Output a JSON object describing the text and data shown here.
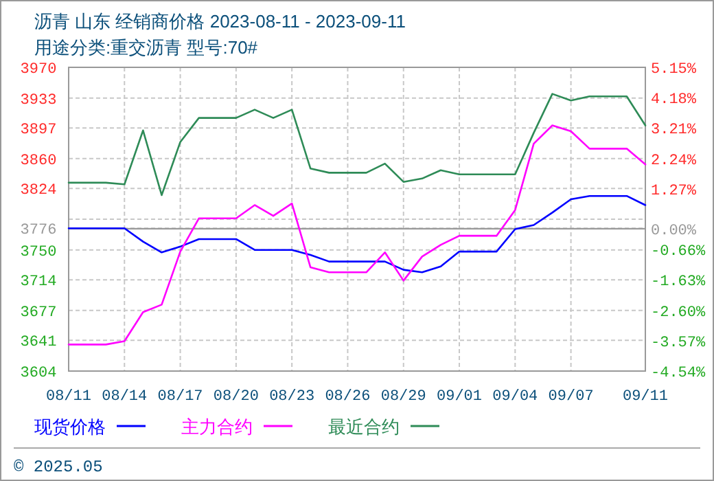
{
  "chart_data": {
    "type": "line",
    "title": "沥青 山东 经销商价格 2023-08-11 - 2023-09-11",
    "subtitle": "用途分类:重交沥青 型号:70#",
    "x": [
      "2023-08-11",
      "2023-08-12",
      "2023-08-13",
      "2023-08-14",
      "2023-08-15",
      "2023-08-16",
      "2023-08-17",
      "2023-08-18",
      "2023-08-19",
      "2023-08-20",
      "2023-08-21",
      "2023-08-22",
      "2023-08-23",
      "2023-08-24",
      "2023-08-25",
      "2023-08-26",
      "2023-08-27",
      "2023-08-28",
      "2023-08-29",
      "2023-08-30",
      "2023-08-31",
      "2023-09-01",
      "2023-09-02",
      "2023-09-03",
      "2023-09-04",
      "2023-09-05",
      "2023-09-06",
      "2023-09-07",
      "2023-09-08",
      "2023-09-09",
      "2023-09-10",
      "2023-09-11"
    ],
    "series": [
      {
        "name": "现货价格",
        "color": "#0000ff",
        "values": [
          3776,
          3776,
          3776,
          3776,
          3760,
          3747,
          3754,
          3763,
          3763,
          3763,
          3750,
          3750,
          3750,
          3744,
          3736,
          3736,
          3736,
          3736,
          3726,
          3723,
          3730,
          3748,
          3748,
          3748,
          3775,
          3780,
          3795,
          3811,
          3815,
          3815,
          3815,
          3804
        ]
      },
      {
        "name": "主力合约",
        "color": "#ff00ff",
        "values": [
          3636,
          3636,
          3636,
          3640,
          3675,
          3684,
          3748,
          3788,
          3788,
          3788,
          3804,
          3791,
          3806,
          3729,
          3723,
          3723,
          3723,
          3747,
          3713,
          3742,
          3756,
          3767,
          3767,
          3767,
          3798,
          3878,
          3900,
          3893,
          3872,
          3872,
          3872,
          3853
        ]
      },
      {
        "name": "最近合约",
        "color": "#2e8b57",
        "values": [
          3831,
          3831,
          3831,
          3829,
          3894,
          3816,
          3880,
          3909,
          3909,
          3909,
          3919,
          3909,
          3919,
          3848,
          3843,
          3843,
          3843,
          3854,
          3832,
          3836,
          3846,
          3841,
          3841,
          3841,
          3841,
          3891,
          3938,
          3930,
          3935,
          3935,
          3935,
          3900
        ]
      }
    ],
    "xlim": [
      "2023-08-11",
      "2023-09-11"
    ],
    "xticks": [
      {
        "value": "2023-08-11",
        "label": "08/11"
      },
      {
        "value": "2023-08-14",
        "label": "08/14"
      },
      {
        "value": "2023-08-17",
        "label": "08/17"
      },
      {
        "value": "2023-08-20",
        "label": "08/20"
      },
      {
        "value": "2023-08-23",
        "label": "08/23"
      },
      {
        "value": "2023-08-26",
        "label": "08/26"
      },
      {
        "value": "2023-08-29",
        "label": "08/29"
      },
      {
        "value": "2023-09-01",
        "label": "09/01"
      },
      {
        "value": "2023-09-04",
        "label": "09/04"
      },
      {
        "value": "2023-09-07",
        "label": "09/07"
      },
      {
        "value": "2023-09-11",
        "label": "09/11"
      }
    ],
    "ylim": [
      3604,
      3970
    ],
    "yticks": [
      3970,
      3933,
      3897,
      3860,
      3824,
      {
        "value": 3787,
        "label": null
      },
      3776,
      3750,
      3714,
      3677,
      3641,
      3604
    ],
    "y2lim": [
      -4.54,
      5.15
    ],
    "y2ticks": [
      {
        "value": 5.15,
        "label": "5.15%"
      },
      {
        "value": 4.18,
        "label": "4.18%"
      },
      {
        "value": 3.21,
        "label": "3.21%"
      },
      {
        "value": 2.24,
        "label": "2.24%"
      },
      {
        "value": 1.27,
        "label": "1.27%"
      },
      {
        "value": 0,
        "label": "0.00%"
      },
      {
        "value": -0.66,
        "label": "-0.66%"
      },
      {
        "value": -1.63,
        "label": "-1.63%"
      },
      {
        "value": -2.6,
        "label": "-2.60%"
      },
      {
        "value": -3.57,
        "label": "-3.57%"
      },
      {
        "value": -4.54,
        "label": "-4.54%"
      }
    ],
    "ref_lines": [
      {
        "axis": "y2",
        "value": 0,
        "color": "#999999",
        "line_style": "solid"
      }
    ],
    "grid": true,
    "legend": "bottom",
    "marker": "none",
    "line_style": "solid",
    "annotations": [
      "© 2025.05"
    ]
  }
}
